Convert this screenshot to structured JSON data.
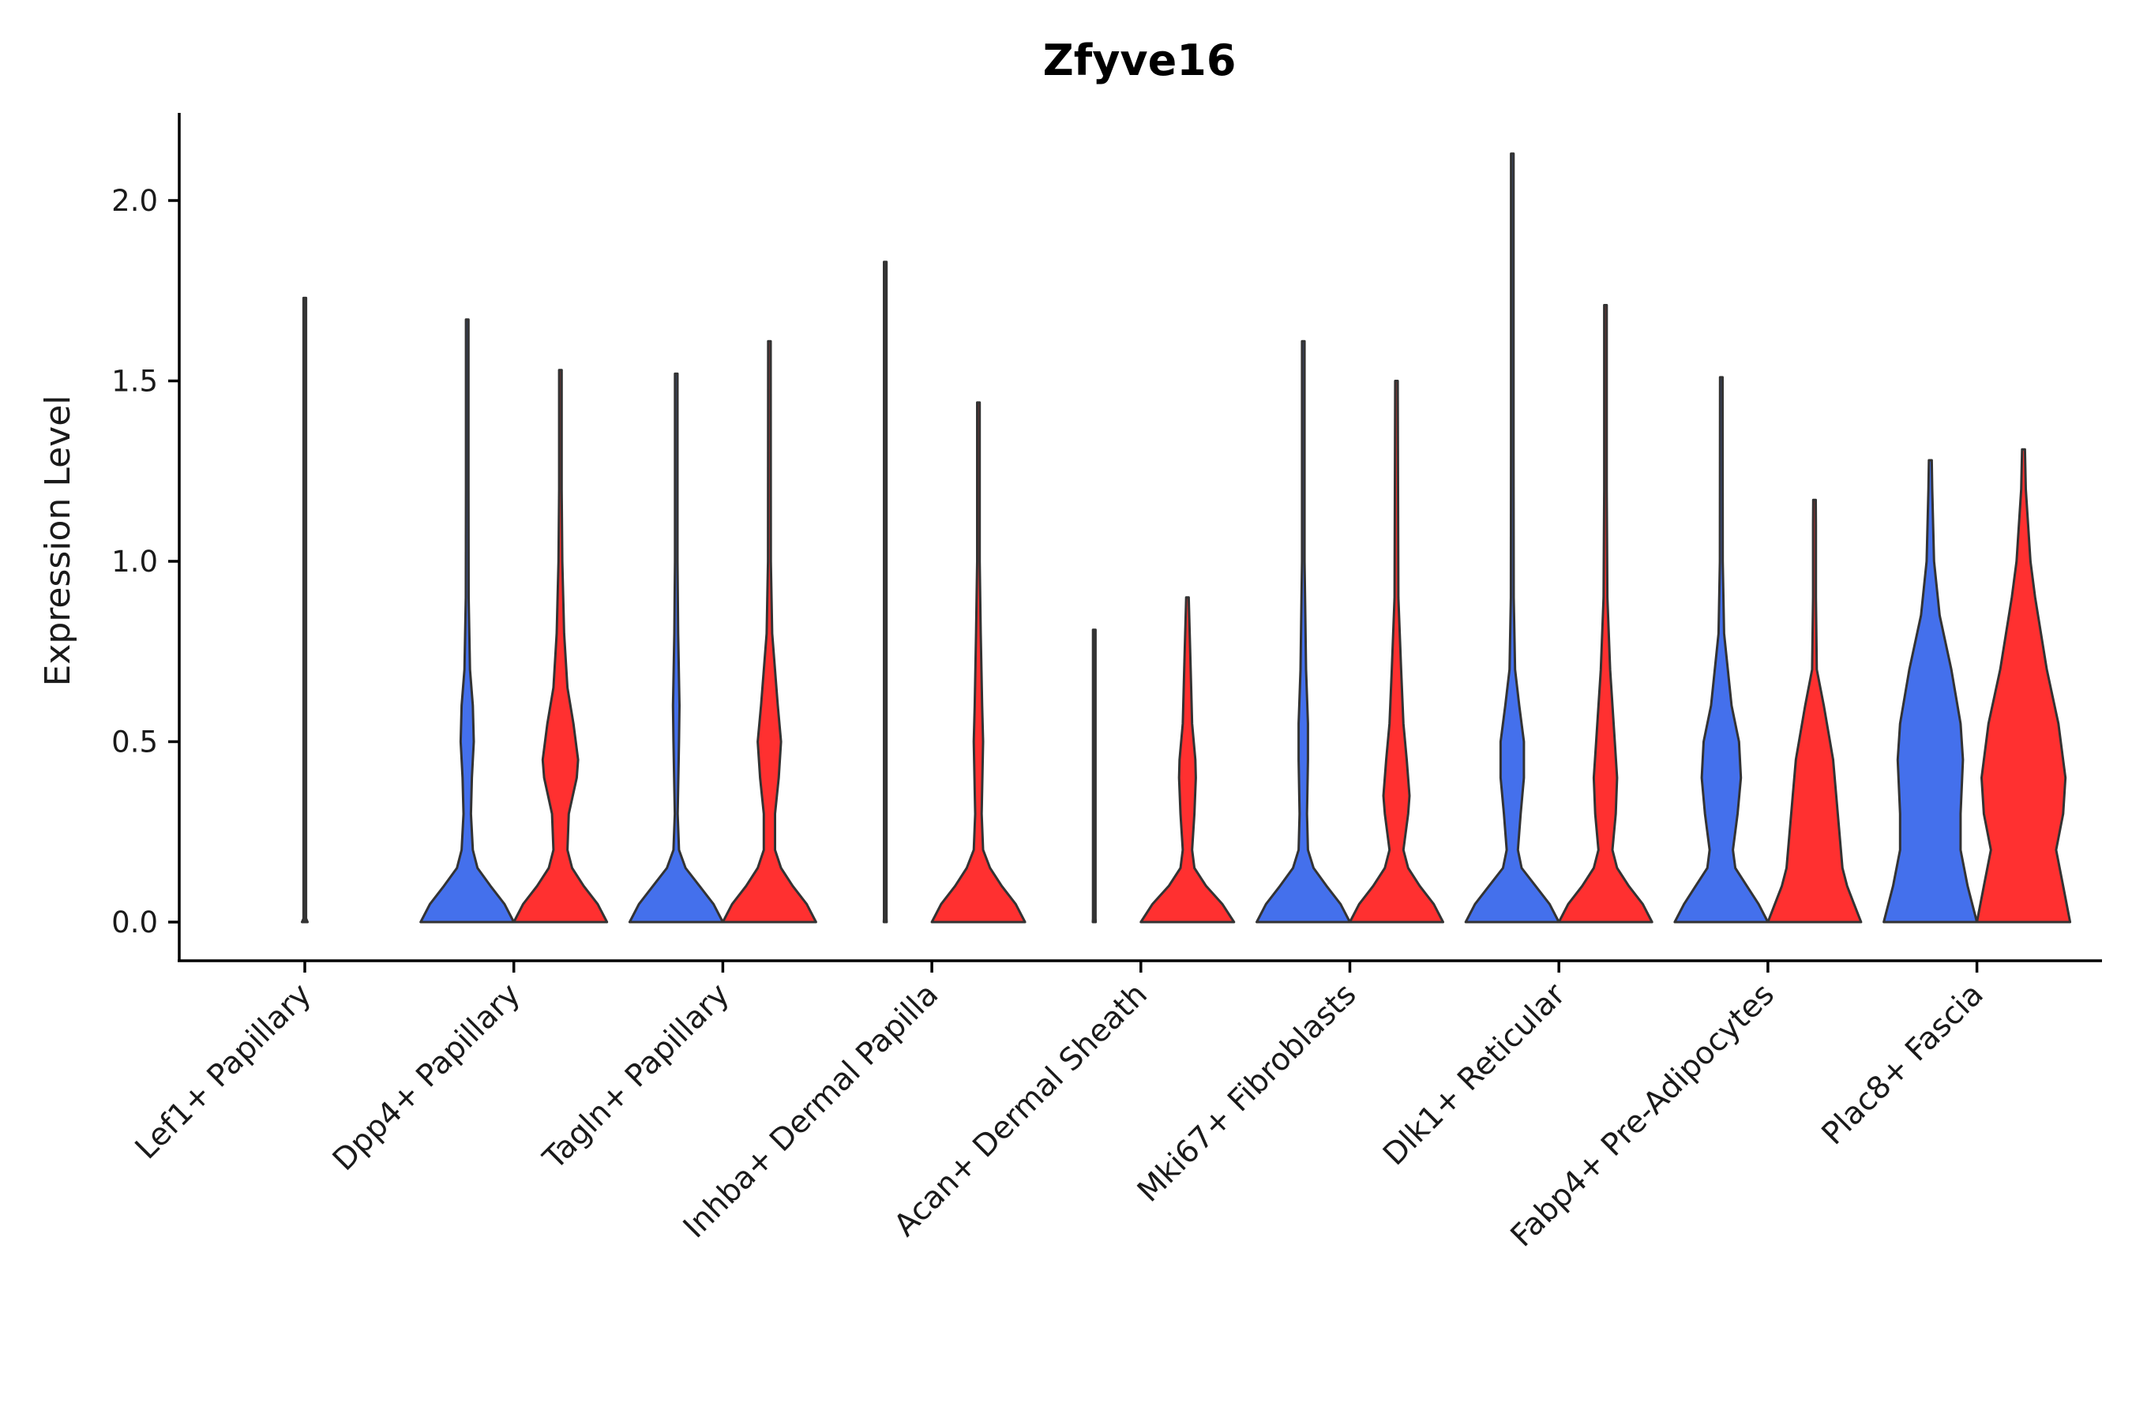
{
  "chart_data": {
    "type": "violin",
    "title": "Zfyve16",
    "xlabel": "",
    "ylabel": "Expression Level",
    "ylim": [
      -0.11,
      2.25
    ],
    "yticks": [
      "0.0",
      "0.5",
      "1.0",
      "1.5",
      "2.0"
    ],
    "ytick_values": [
      0,
      0.5,
      1.0,
      1.5,
      2.0
    ],
    "grid": false,
    "legend": "none",
    "colors": {
      "blue": "#4470EC",
      "red": "#FF3030",
      "none": "#777777"
    },
    "categories": [
      "Lef1+ Papillary",
      "Dpp4+ Papillary",
      "Tagln+ Papillary",
      "Inhba+ Dermal Papilla",
      "Acan+ Dermal Sheath",
      "Mki67+ Fibroblasts",
      "Dlk1+ Reticular",
      "Fabp4+ Pre-Adipocytes",
      "Plac8+ Fascia"
    ],
    "violins": [
      [
        {
          "series": "single",
          "color": "none",
          "max": 1.73,
          "density": [
            [
              0,
              0.03
            ],
            [
              0.01,
              0
            ],
            [
              1.73,
              0
            ]
          ]
        }
      ],
      [
        {
          "series": "blue",
          "color": "blue",
          "max": 1.67,
          "density": [
            [
              0,
              1
            ],
            [
              0.05,
              0.8
            ],
            [
              0.1,
              0.5
            ],
            [
              0.15,
              0.22
            ],
            [
              0.2,
              0.12
            ],
            [
              0.3,
              0.08
            ],
            [
              0.4,
              0.1
            ],
            [
              0.5,
              0.14
            ],
            [
              0.6,
              0.12
            ],
            [
              0.7,
              0.06
            ],
            [
              0.9,
              0.03
            ],
            [
              1.2,
              0.01
            ],
            [
              1.67,
              0
            ]
          ]
        },
        {
          "series": "red",
          "color": "red",
          "max": 1.53,
          "density": [
            [
              0,
              1
            ],
            [
              0.05,
              0.8
            ],
            [
              0.1,
              0.5
            ],
            [
              0.15,
              0.25
            ],
            [
              0.2,
              0.15
            ],
            [
              0.3,
              0.18
            ],
            [
              0.4,
              0.35
            ],
            [
              0.45,
              0.38
            ],
            [
              0.55,
              0.28
            ],
            [
              0.65,
              0.15
            ],
            [
              0.8,
              0.08
            ],
            [
              1.0,
              0.04
            ],
            [
              1.2,
              0.01
            ],
            [
              1.53,
              0
            ]
          ]
        }
      ],
      [
        {
          "series": "blue",
          "color": "blue",
          "max": 1.52,
          "density": [
            [
              0,
              1
            ],
            [
              0.05,
              0.8
            ],
            [
              0.1,
              0.5
            ],
            [
              0.15,
              0.2
            ],
            [
              0.2,
              0.06
            ],
            [
              0.3,
              0.03
            ],
            [
              0.5,
              0.06
            ],
            [
              0.6,
              0.07
            ],
            [
              0.8,
              0.04
            ],
            [
              1.0,
              0.02
            ],
            [
              1.52,
              0
            ]
          ]
        },
        {
          "series": "red",
          "color": "red",
          "max": 1.61,
          "density": [
            [
              0,
              1
            ],
            [
              0.05,
              0.8
            ],
            [
              0.1,
              0.5
            ],
            [
              0.15,
              0.25
            ],
            [
              0.2,
              0.12
            ],
            [
              0.3,
              0.12
            ],
            [
              0.4,
              0.2
            ],
            [
              0.5,
              0.25
            ],
            [
              0.6,
              0.18
            ],
            [
              0.8,
              0.06
            ],
            [
              1.0,
              0.03
            ],
            [
              1.61,
              0
            ]
          ]
        }
      ],
      [
        {
          "series": "blue",
          "color": "none",
          "max": 1.83,
          "density": [
            [
              0,
              0.03
            ],
            [
              0.01,
              0
            ],
            [
              1.83,
              0
            ]
          ]
        },
        {
          "series": "red",
          "color": "red",
          "max": 1.44,
          "density": [
            [
              0,
              1
            ],
            [
              0.05,
              0.8
            ],
            [
              0.1,
              0.5
            ],
            [
              0.15,
              0.25
            ],
            [
              0.2,
              0.1
            ],
            [
              0.3,
              0.07
            ],
            [
              0.5,
              0.1
            ],
            [
              0.6,
              0.08
            ],
            [
              0.8,
              0.05
            ],
            [
              1.0,
              0.02
            ],
            [
              1.44,
              0
            ]
          ]
        }
      ],
      [
        {
          "series": "blue",
          "color": "none",
          "max": 0.81,
          "density": [
            [
              0,
              0.03
            ],
            [
              0.01,
              0
            ],
            [
              0.81,
              0
            ]
          ]
        },
        {
          "series": "red",
          "color": "red",
          "max": 0.9,
          "density": [
            [
              0,
              1
            ],
            [
              0.05,
              0.75
            ],
            [
              0.1,
              0.4
            ],
            [
              0.15,
              0.15
            ],
            [
              0.2,
              0.1
            ],
            [
              0.3,
              0.15
            ],
            [
              0.4,
              0.18
            ],
            [
              0.45,
              0.17
            ],
            [
              0.55,
              0.1
            ],
            [
              0.7,
              0.07
            ],
            [
              0.9,
              0
            ]
          ]
        }
      ],
      [
        {
          "series": "blue",
          "color": "blue",
          "max": 1.61,
          "density": [
            [
              0,
              1
            ],
            [
              0.05,
              0.8
            ],
            [
              0.1,
              0.5
            ],
            [
              0.15,
              0.22
            ],
            [
              0.2,
              0.1
            ],
            [
              0.3,
              0.08
            ],
            [
              0.45,
              0.1
            ],
            [
              0.55,
              0.1
            ],
            [
              0.7,
              0.06
            ],
            [
              1.0,
              0.02
            ],
            [
              1.61,
              0
            ]
          ]
        },
        {
          "series": "red",
          "color": "red",
          "max": 1.5,
          "density": [
            [
              0,
              1
            ],
            [
              0.05,
              0.8
            ],
            [
              0.1,
              0.5
            ],
            [
              0.15,
              0.25
            ],
            [
              0.2,
              0.15
            ],
            [
              0.3,
              0.25
            ],
            [
              0.35,
              0.28
            ],
            [
              0.45,
              0.22
            ],
            [
              0.55,
              0.15
            ],
            [
              0.7,
              0.1
            ],
            [
              0.9,
              0.04
            ],
            [
              1.5,
              0
            ]
          ]
        }
      ],
      [
        {
          "series": "blue",
          "color": "blue",
          "max": 2.13,
          "density": [
            [
              0,
              1
            ],
            [
              0.05,
              0.8
            ],
            [
              0.1,
              0.5
            ],
            [
              0.15,
              0.2
            ],
            [
              0.2,
              0.12
            ],
            [
              0.3,
              0.18
            ],
            [
              0.4,
              0.25
            ],
            [
              0.5,
              0.25
            ],
            [
              0.6,
              0.15
            ],
            [
              0.7,
              0.06
            ],
            [
              0.9,
              0.03
            ],
            [
              1.3,
              0.01
            ],
            [
              2.13,
              0
            ]
          ]
        },
        {
          "series": "red",
          "color": "red",
          "max": 1.71,
          "density": [
            [
              0,
              1
            ],
            [
              0.05,
              0.8
            ],
            [
              0.1,
              0.5
            ],
            [
              0.15,
              0.25
            ],
            [
              0.2,
              0.15
            ],
            [
              0.3,
              0.22
            ],
            [
              0.4,
              0.25
            ],
            [
              0.5,
              0.2
            ],
            [
              0.7,
              0.1
            ],
            [
              0.9,
              0.04
            ],
            [
              1.2,
              0.01
            ],
            [
              1.71,
              0
            ]
          ]
        }
      ],
      [
        {
          "series": "blue",
          "color": "blue",
          "max": 1.51,
          "density": [
            [
              0,
              1
            ],
            [
              0.05,
              0.8
            ],
            [
              0.1,
              0.55
            ],
            [
              0.15,
              0.3
            ],
            [
              0.2,
              0.25
            ],
            [
              0.3,
              0.35
            ],
            [
              0.4,
              0.42
            ],
            [
              0.5,
              0.38
            ],
            [
              0.6,
              0.22
            ],
            [
              0.8,
              0.06
            ],
            [
              1.0,
              0.03
            ],
            [
              1.51,
              0
            ]
          ]
        },
        {
          "series": "red",
          "color": "red",
          "max": 1.17,
          "density": [
            [
              0,
              1
            ],
            [
              0.05,
              0.85
            ],
            [
              0.1,
              0.7
            ],
            [
              0.15,
              0.6
            ],
            [
              0.3,
              0.5
            ],
            [
              0.45,
              0.4
            ],
            [
              0.6,
              0.2
            ],
            [
              0.7,
              0.05
            ],
            [
              0.9,
              0.03
            ],
            [
              1.1,
              0.03
            ],
            [
              1.17,
              0.02
            ]
          ]
        }
      ],
      [
        {
          "series": "blue",
          "color": "blue",
          "max": 1.28,
          "density": [
            [
              0,
              1
            ],
            [
              0.1,
              0.8
            ],
            [
              0.2,
              0.65
            ],
            [
              0.3,
              0.65
            ],
            [
              0.45,
              0.7
            ],
            [
              0.55,
              0.65
            ],
            [
              0.7,
              0.45
            ],
            [
              0.85,
              0.2
            ],
            [
              1.0,
              0.08
            ],
            [
              1.2,
              0.04
            ],
            [
              1.28,
              0.03
            ]
          ]
        },
        {
          "series": "red",
          "color": "red",
          "max": 1.31,
          "density": [
            [
              0,
              1
            ],
            [
              0.1,
              0.85
            ],
            [
              0.2,
              0.7
            ],
            [
              0.3,
              0.85
            ],
            [
              0.4,
              0.9
            ],
            [
              0.55,
              0.75
            ],
            [
              0.7,
              0.5
            ],
            [
              0.9,
              0.25
            ],
            [
              1.0,
              0.15
            ],
            [
              1.2,
              0.05
            ],
            [
              1.31,
              0.03
            ]
          ]
        }
      ]
    ]
  }
}
